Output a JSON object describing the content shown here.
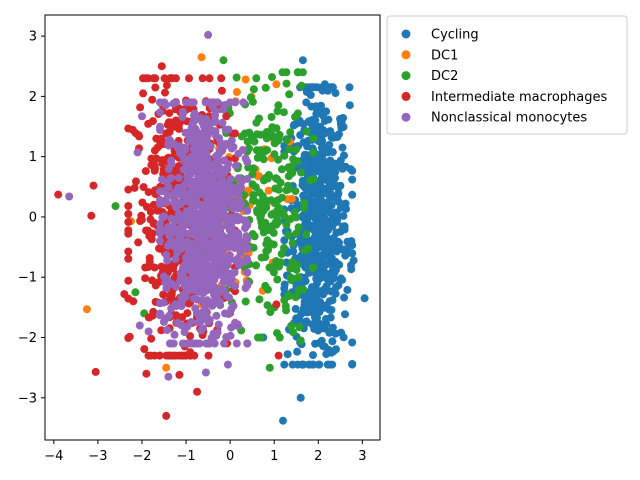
{
  "chart_data": {
    "type": "scatter",
    "title": "",
    "xlabel": "",
    "ylabel": "",
    "xlim": [
      -4.2,
      3.4
    ],
    "ylim": [
      -3.7,
      3.35
    ],
    "xticks": [
      -4,
      -3,
      -2,
      -1,
      0,
      1,
      2,
      3
    ],
    "yticks": [
      -3,
      -2,
      -1,
      0,
      1,
      2,
      3
    ],
    "grid": false,
    "legend_position": "outside-top-right",
    "series": [
      {
        "name": "Cycling",
        "color": "#1f77b4",
        "cluster": {
          "cx": 2.0,
          "cy": -0.15,
          "sx": 0.35,
          "sy": 1.15,
          "n": 650
        },
        "points": [
          [
            1.65,
            2.6
          ],
          [
            1.2,
            -3.38
          ],
          [
            3.05,
            -1.35
          ],
          [
            2.75,
            -0.4
          ],
          [
            2.8,
            -0.72
          ],
          [
            1.6,
            -3.0
          ],
          [
            1.55,
            2.4
          ],
          [
            2.15,
            2.2
          ],
          [
            0.75,
            -2.0
          ],
          [
            2.55,
            1.15
          ]
        ]
      },
      {
        "name": "DC1",
        "color": "#ff7f0e",
        "cluster": {
          "cx": 0.2,
          "cy": 0.2,
          "sx": 0.5,
          "sy": 1.0,
          "n": 60
        },
        "points": [
          [
            -3.25,
            -1.53
          ],
          [
            -0.65,
            2.65
          ],
          [
            1.05,
            2.2
          ],
          [
            1.4,
            0.3
          ],
          [
            -1.45,
            -2.5
          ],
          [
            -2.25,
            -0.07
          ],
          [
            1.35,
            1.25
          ],
          [
            0.35,
            2.28
          ]
        ]
      },
      {
        "name": "DC2",
        "color": "#2ca02c",
        "cluster": {
          "cx": 0.9,
          "cy": 0.2,
          "sx": 0.45,
          "sy": 1.1,
          "n": 230
        },
        "points": [
          [
            -2.6,
            0.18
          ],
          [
            -1.95,
            -1.6
          ],
          [
            0.9,
            -2.5
          ],
          [
            1.6,
            -2.05
          ],
          [
            -0.15,
            2.6
          ],
          [
            0.95,
            2.32
          ],
          [
            -2.15,
            -1.25
          ]
        ]
      },
      {
        "name": "Intermediate macrophages",
        "color": "#d62728",
        "cluster": {
          "cx": -1.1,
          "cy": 0.0,
          "sx": 0.55,
          "sy": 1.15,
          "n": 520
        },
        "points": [
          [
            -3.9,
            0.37
          ],
          [
            -3.1,
            0.52
          ],
          [
            -3.15,
            0.02
          ],
          [
            -3.05,
            -2.57
          ],
          [
            -1.45,
            -3.3
          ],
          [
            -1.9,
            -2.6
          ],
          [
            -1.55,
            2.5
          ],
          [
            -0.75,
            -2.9
          ],
          [
            1.05,
            -1.45
          ],
          [
            1.1,
            -2.3
          ],
          [
            -2.4,
            -1.28
          ],
          [
            -1.15,
            -2.62
          ]
        ]
      },
      {
        "name": "Nonclassical monocytes",
        "color": "#9467bd",
        "cluster": {
          "cx": -0.6,
          "cy": -0.1,
          "sx": 0.45,
          "sy": 1.0,
          "n": 850
        },
        "points": [
          [
            -3.65,
            0.34
          ],
          [
            -0.5,
            3.02
          ],
          [
            -2.1,
            1.07
          ],
          [
            -2.0,
            1.67
          ],
          [
            -2.05,
            -1.8
          ],
          [
            -0.05,
            -2.45
          ],
          [
            -1.4,
            -2.65
          ],
          [
            -0.55,
            -2.58
          ],
          [
            -1.85,
            -1.9
          ]
        ]
      }
    ]
  }
}
